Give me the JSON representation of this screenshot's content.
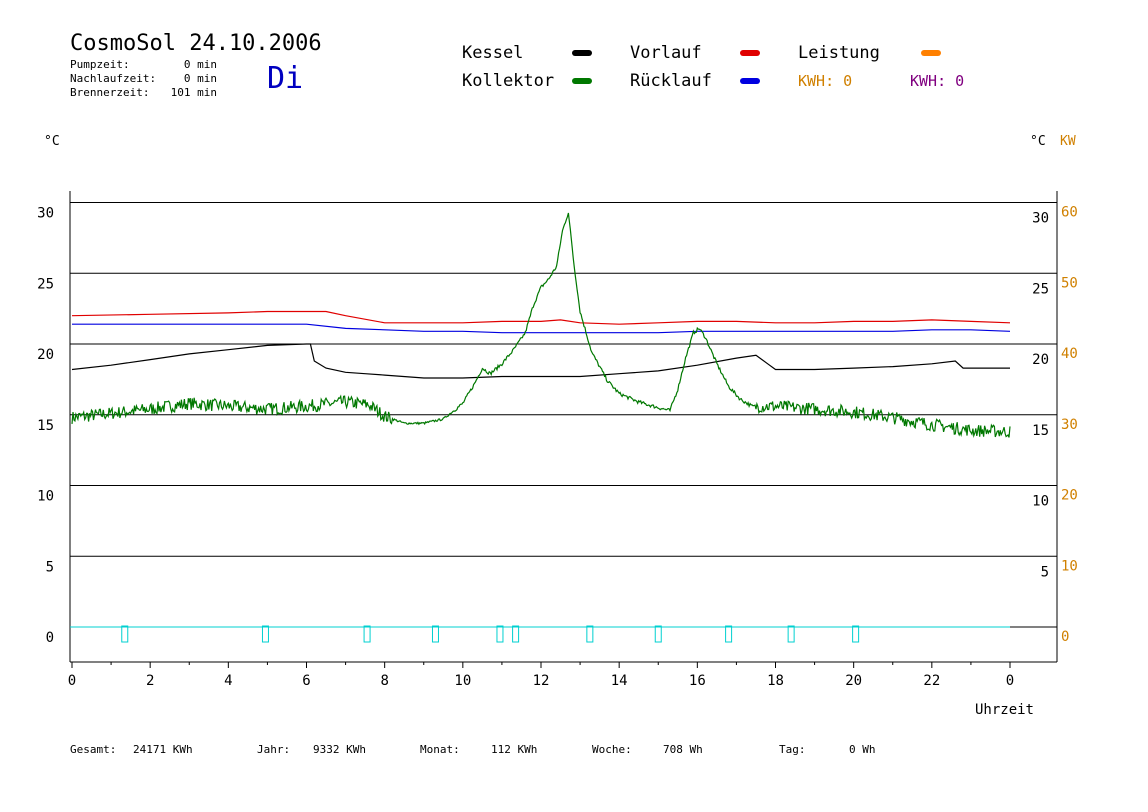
{
  "header": {
    "title": "CosmoSol 24.10.2006",
    "day": "Di",
    "pumpzeit_label": "Pumpzeit:",
    "pumpzeit_value": "0 min",
    "nachlaufzeit_label": "Nachlaufzeit:",
    "nachlaufzeit_value": "0 min",
    "brennerzeit_label": "Brennerzeit:",
    "brennerzeit_value": "101 min"
  },
  "legend": {
    "kessel": "Kessel",
    "kollektor": "Kollektor",
    "vorlauf": "Vorlauf",
    "ruecklauf": "Rücklauf",
    "leistung": "Leistung",
    "kwh_orange": "KWH: 0",
    "kwh_purple": "KWH: 0"
  },
  "colors": {
    "kessel": "#000000",
    "kollektor": "#007800",
    "vorlauf": "#e00000",
    "ruecklauf": "#0000e0",
    "leistung": "#ff8000",
    "kwh_orange": "#d08000",
    "kwh_purple": "#800080",
    "pump_marker": "#00d0d0",
    "day_label": "#0000c0",
    "right_axis_kw": "#d08000"
  },
  "footer": {
    "gesamt_label": "Gesamt:",
    "gesamt_value": "24171 KWh",
    "jahr_label": "Jahr:",
    "jahr_value": "9332 KWh",
    "monat_label": "Monat:",
    "monat_value": "112 KWh",
    "woche_label": "Woche:",
    "woche_value": "708 Wh",
    "tag_label": "Tag:",
    "tag_value": "0 Wh"
  },
  "chart_data": {
    "type": "line",
    "title": "CosmoSol 24.10.2006",
    "xlabel": "Uhrzeit",
    "ylabel_left": "°C",
    "ylabel_right": "°C",
    "ylabel_right_kw": "KW",
    "xlim": [
      0,
      24
    ],
    "ylim": [
      -2.5,
      32
    ],
    "grid": true,
    "x_tick_labels": [
      "0",
      "2",
      "4",
      "6",
      "8",
      "10",
      "12",
      "14",
      "16",
      "18",
      "20",
      "22",
      "0"
    ],
    "y_left_ticks": [
      0,
      5,
      10,
      15,
      20,
      25,
      30
    ],
    "y_right_temp_ticks": [
      5,
      10,
      15,
      20,
      25,
      30
    ],
    "y_right_kw_ticks": [
      0,
      10,
      20,
      30,
      40,
      50,
      60
    ],
    "series": [
      {
        "name": "Vorlauf",
        "key": "vorlauf",
        "style": "solid",
        "x": [
          0,
          2,
          4,
          5,
          6,
          6.5,
          7,
          8,
          9,
          10,
          11,
          12,
          12.5,
          13,
          14,
          15,
          16,
          17,
          18,
          19,
          20,
          21,
          22,
          23,
          24
        ],
        "y": [
          22.0,
          22.1,
          22.2,
          22.3,
          22.3,
          22.3,
          22.0,
          21.5,
          21.5,
          21.5,
          21.6,
          21.6,
          21.7,
          21.5,
          21.4,
          21.5,
          21.6,
          21.6,
          21.5,
          21.5,
          21.6,
          21.6,
          21.7,
          21.6,
          21.5
        ]
      },
      {
        "name": "Rücklauf",
        "key": "ruecklauf",
        "style": "solid",
        "x": [
          0,
          2,
          4,
          6,
          7,
          8,
          9,
          10,
          11,
          12,
          13,
          14,
          15,
          16,
          17,
          18,
          19,
          20,
          21,
          22,
          23,
          24
        ],
        "y": [
          21.4,
          21.4,
          21.4,
          21.4,
          21.1,
          21.0,
          20.9,
          20.9,
          20.8,
          20.8,
          20.8,
          20.8,
          20.8,
          20.9,
          20.9,
          20.9,
          20.9,
          20.9,
          20.9,
          21.0,
          21.0,
          20.9
        ]
      },
      {
        "name": "Kessel",
        "key": "kessel",
        "style": "solid",
        "x": [
          0,
          1,
          2,
          3,
          4,
          5,
          6,
          6.1,
          6.2,
          6.5,
          7,
          7.5,
          8,
          9,
          10,
          11,
          12,
          13,
          14,
          15,
          16,
          17,
          17.5,
          17.8,
          18,
          19,
          20,
          21,
          22,
          22.6,
          22.8,
          23,
          24
        ],
        "y": [
          18.2,
          18.5,
          18.9,
          19.3,
          19.6,
          19.9,
          20.0,
          20.0,
          18.8,
          18.3,
          18.0,
          17.9,
          17.8,
          17.6,
          17.6,
          17.7,
          17.7,
          17.7,
          17.9,
          18.1,
          18.5,
          19.0,
          19.2,
          18.6,
          18.2,
          18.2,
          18.3,
          18.4,
          18.6,
          18.8,
          18.3,
          18.3,
          18.3
        ]
      },
      {
        "name": "Kollektor",
        "key": "kollektor",
        "style": "noisy",
        "x": [
          0,
          1,
          2,
          3,
          4,
          5,
          6,
          7,
          7.6,
          8,
          8.5,
          9,
          9.5,
          10,
          10.3,
          10.5,
          10.7,
          11,
          11.3,
          11.6,
          11.8,
          12,
          12.2,
          12.4,
          12.55,
          12.7,
          12.85,
          13,
          13.3,
          13.7,
          14,
          14.5,
          15,
          15.3,
          15.5,
          15.7,
          15.9,
          16.05,
          16.2,
          16.5,
          16.8,
          17.1,
          17.4,
          18,
          19,
          20,
          21,
          22,
          23,
          24
        ],
        "y": [
          14.8,
          15.1,
          15.4,
          15.8,
          15.6,
          15.4,
          15.6,
          15.9,
          15.7,
          14.9,
          14.4,
          14.4,
          14.7,
          15.8,
          17.2,
          18.3,
          17.9,
          18.6,
          19.6,
          20.8,
          22.7,
          24.0,
          24.6,
          25.5,
          28.0,
          29.3,
          25.5,
          22.3,
          19.4,
          17.4,
          16.5,
          15.9,
          15.5,
          15.3,
          16.8,
          19.0,
          20.8,
          21.1,
          20.5,
          18.6,
          17.0,
          16.1,
          15.6,
          15.6,
          15.4,
          15.2,
          14.8,
          14.3,
          13.9,
          13.8
        ]
      }
    ],
    "pump_markers_x": [
      1.35,
      4.95,
      7.55,
      9.3,
      10.95,
      11.35,
      13.25,
      15.0,
      16.8,
      18.4,
      20.05
    ]
  }
}
